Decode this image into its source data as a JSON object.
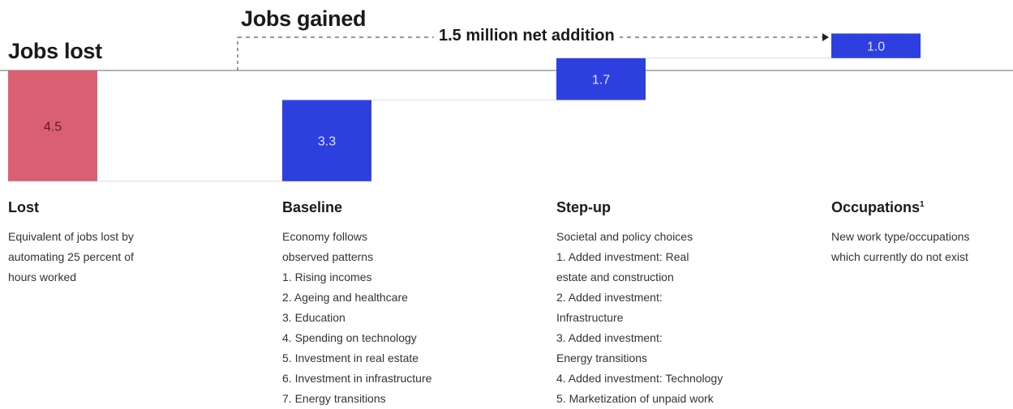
{
  "chart_data": {
    "type": "waterfall",
    "unit": "million jobs",
    "headers": {
      "lost": "Jobs lost",
      "gained": "Jobs gained"
    },
    "net_annotation": "1.5 million net addition",
    "net_value": 1.5,
    "bars": [
      {
        "label": "Lost",
        "value": -4.5,
        "display": "4.5",
        "color": "#d95f72",
        "label_color": "#5a1e28"
      },
      {
        "label": "Baseline",
        "value": 3.3,
        "display": "3.3",
        "color": "#2e3fe0",
        "label_color": "#dfe3ff"
      },
      {
        "label": "Step-up",
        "value": 1.7,
        "display": "1.7",
        "color": "#2e3fe0",
        "label_color": "#dfe3ff"
      },
      {
        "label": "Occupations",
        "value": 1.0,
        "display": "1.0",
        "color": "#2e3fe0",
        "label_color": "#dfe3ff"
      }
    ]
  },
  "columns": [
    {
      "title": "Lost",
      "footnote": "",
      "lines": [
        "Equivalent of jobs lost by",
        "automating 25 percent of",
        "hours worked"
      ]
    },
    {
      "title": "Baseline",
      "footnote": "",
      "lines": [
        "Economy follows",
        "observed patterns",
        "1. Rising incomes",
        "2. Ageing and healthcare",
        "3. Education",
        "4. Spending on technology",
        "5. Investment in real estate",
        "6. Investment in infrastructure",
        "7. Energy transitions"
      ]
    },
    {
      "title": "Step-up",
      "footnote": "",
      "lines": [
        "Societal and policy choices",
        "1. Added investment: Real",
        "estate and construction",
        "2. Added investment:",
        "Infrastructure",
        "3. Added investment:",
        "Energy transitions",
        "4. Added investment: Technology",
        "5. Marketization of unpaid work"
      ]
    },
    {
      "title": "Occupations",
      "footnote": "1",
      "lines": [
        "New work type/occupations",
        "which currently do not exist"
      ]
    }
  ]
}
